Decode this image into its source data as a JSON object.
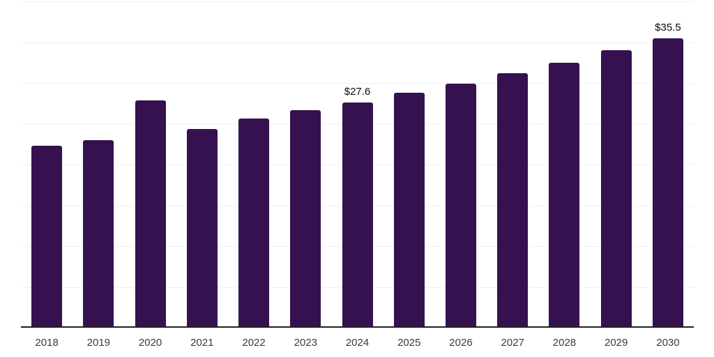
{
  "chart_data": {
    "type": "bar",
    "title": "",
    "categories": [
      "2018",
      "2019",
      "2020",
      "2021",
      "2022",
      "2023",
      "2024",
      "2025",
      "2026",
      "2027",
      "2028",
      "2029",
      "2030"
    ],
    "values": [
      22.3,
      23.0,
      27.9,
      24.4,
      25.6,
      26.7,
      27.6,
      28.8,
      29.9,
      31.2,
      32.5,
      34.0,
      35.5
    ],
    "data_labels": [
      {
        "category": "2024",
        "text": "$27.6"
      },
      {
        "category": "2030",
        "text": "$35.5"
      }
    ],
    "xlabel": "",
    "ylabel": "",
    "ylim": [
      0,
      40
    ],
    "gridline_step": 5,
    "grid": "horizontal",
    "legend": "none",
    "y_axis_tick_labels_visible": false,
    "colors": {
      "bar": "#361150",
      "gridline": "#f0f0f0",
      "axis": "#1f1f1f",
      "tick_label": "#3a3a3a",
      "data_label": "#0a0a0a",
      "background": "#ffffff"
    }
  }
}
